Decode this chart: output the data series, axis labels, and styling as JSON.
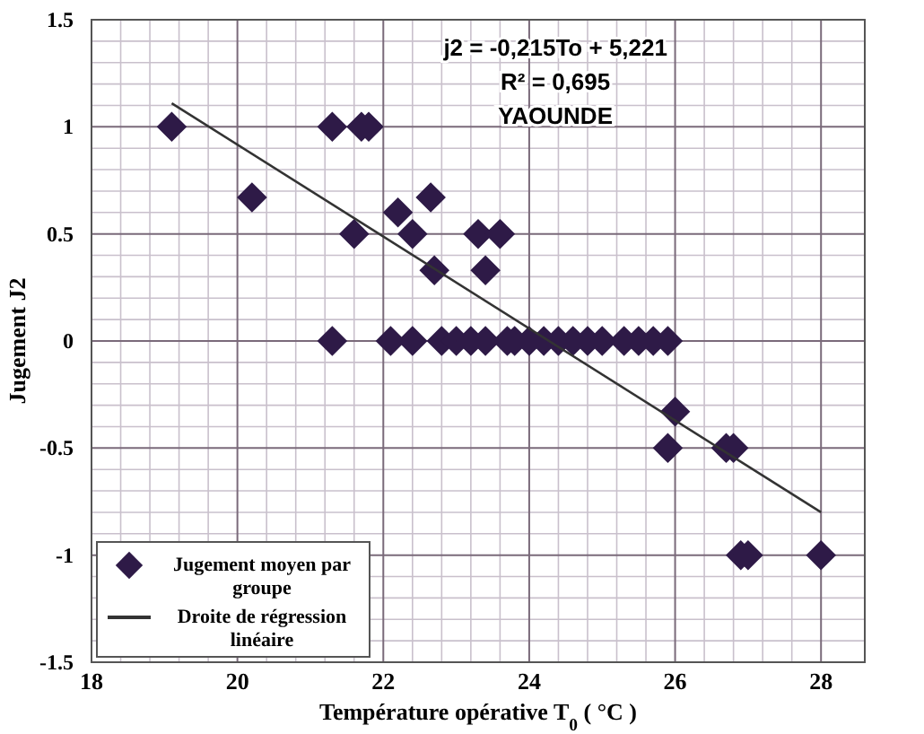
{
  "chart_data": {
    "type": "scatter",
    "xlabel": "Température opérative T$_{0}$ ( °C )",
    "ylabel": "Jugement J2",
    "xlim": [
      18,
      28.6
    ],
    "xticks": [
      18,
      20,
      22,
      24,
      26,
      28
    ],
    "ylim": [
      -1.5,
      1.5
    ],
    "yticks": [
      -1.5,
      -1,
      -0.5,
      0,
      0.5,
      1,
      1.5
    ],
    "grid": true,
    "legend": "bottom left",
    "annotations": [
      "j2 = -0,215To + 5,221",
      "R² = 0,695",
      "YAOUNDE"
    ],
    "series": [
      {
        "name": "Jugement moyen par groupe",
        "marker": "diamond",
        "color": "#2e1a47",
        "x": [
          19.1,
          20.2,
          21.3,
          21.3,
          21.6,
          21.7,
          21.8,
          22.2,
          22.4,
          22.1,
          22.4,
          22.65,
          22.7,
          22.8,
          23.0,
          23.2,
          23.3,
          23.4,
          23.4,
          23.6,
          23.7,
          23.8,
          24.0,
          24.2,
          24.4,
          24.6,
          24.8,
          25.0,
          25.3,
          25.5,
          25.7,
          25.9,
          25.9,
          26.0,
          26.7,
          26.8,
          26.9,
          27.0,
          28.0
        ],
        "values": [
          1,
          0.67,
          1,
          0,
          0.5,
          1,
          1,
          0.6,
          0.5,
          0,
          0,
          0.67,
          0.33,
          0,
          0,
          0,
          0.5,
          0.33,
          0,
          0.5,
          0,
          0,
          0,
          0,
          0,
          0,
          0,
          0,
          0,
          0,
          0,
          0,
          -0.5,
          -0.33,
          -0.5,
          -0.5,
          -1,
          -1,
          -1
        ]
      },
      {
        "name": "Droite de régression linéaire",
        "type": "line",
        "marker": "none",
        "line_style": "solid",
        "color": "#333333",
        "x": [
          19.1,
          28
        ],
        "values": [
          1.11,
          -0.8
        ]
      }
    ]
  }
}
